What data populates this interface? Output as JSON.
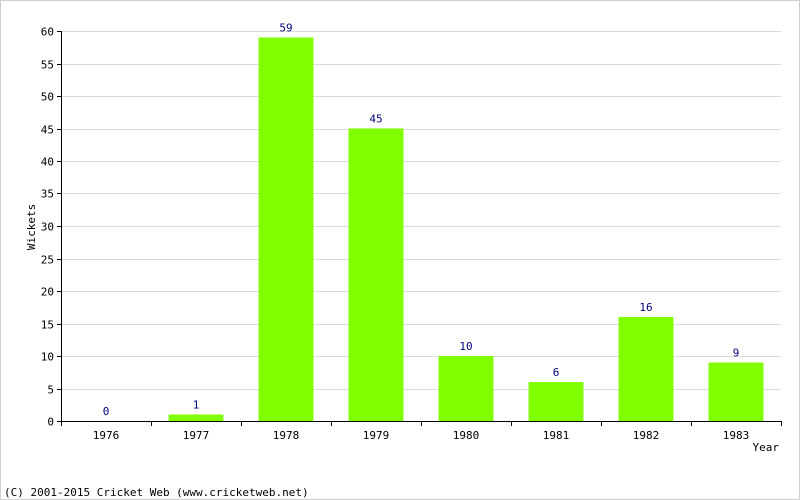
{
  "chart_data": {
    "type": "bar",
    "categories": [
      "1976",
      "1977",
      "1978",
      "1979",
      "1980",
      "1981",
      "1982",
      "1983"
    ],
    "values": [
      0,
      1,
      59,
      45,
      10,
      6,
      16,
      9
    ],
    "data_labels": [
      "0",
      "1",
      "59",
      "45",
      "10",
      "6",
      "16",
      "9"
    ],
    "ylabel": "Wickets",
    "xlabel": "Year",
    "ylim": [
      0,
      60
    ],
    "yticks": [
      0,
      5,
      10,
      15,
      20,
      25,
      30,
      35,
      40,
      45,
      50,
      55,
      60
    ],
    "ytick_labels": [
      "0",
      "5",
      "10",
      "15",
      "20",
      "25",
      "30",
      "35",
      "40",
      "45",
      "50",
      "55",
      "60"
    ],
    "grid": true,
    "bar_color": "#7fff00",
    "label_color": "#000080",
    "grid_color": "#dcdcdc"
  },
  "footer": {
    "copyright": "(C) 2001-2015 Cricket Web (www.cricketweb.net)"
  }
}
